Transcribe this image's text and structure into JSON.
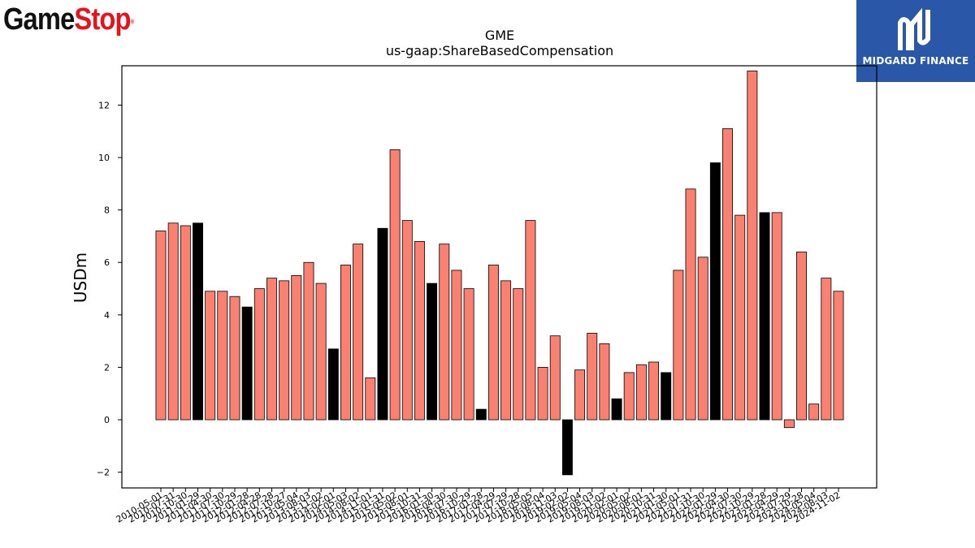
{
  "logos": {
    "gamestop_part1": "Game",
    "gamestop_part2": "Stop",
    "gamestop_reg": "®",
    "midgard": "MIDGARD FINANCE"
  },
  "chart_data": {
    "type": "bar",
    "title": "GME",
    "subtitle": "us-gaap:ShareBasedCompensation",
    "xlabel": "",
    "ylabel": "USDm",
    "ylim": [
      -2.6,
      13.5
    ],
    "yticks": [
      -2,
      0,
      2,
      4,
      6,
      8,
      10,
      12
    ],
    "ytick_labels": [
      "−2",
      "0",
      "2",
      "4",
      "6",
      "8",
      "10",
      "12"
    ],
    "grid": false,
    "colors": {
      "normal": "#fa8072",
      "highlight": "#000000",
      "edge": "#000000"
    },
    "categories": [
      "2010-05-01",
      "2010-07-31",
      "2010-10-30",
      "2011-01-29",
      "2011-04-30",
      "2011-07-30",
      "2011-10-29",
      "2012-01-28",
      "2012-04-28",
      "2012-07-28",
      "2012-10-27",
      "2013-05-04",
      "2013-08-03",
      "2013-11-02",
      "2014-02-01",
      "2014-05-03",
      "2014-08-02",
      "2014-11-01",
      "2015-01-31",
      "2015-05-02",
      "2015-08-01",
      "2015-10-31",
      "2016-01-30",
      "2016-04-30",
      "2016-07-30",
      "2016-10-29",
      "2017-01-28",
      "2017-04-29",
      "2017-07-29",
      "2017-10-28",
      "2018-05-05",
      "2018-08-04",
      "2018-11-03",
      "2019-02-02",
      "2019-05-04",
      "2019-08-03",
      "2019-11-02",
      "2020-02-01",
      "2020-05-02",
      "2020-08-01",
      "2020-10-31",
      "2021-01-30",
      "2021-05-01",
      "2021-07-31",
      "2021-10-30",
      "2022-01-29",
      "2022-04-30",
      "2022-07-30",
      "2022-10-29",
      "2023-01-28",
      "2023-04-29",
      "2023-07-29",
      "2023-10-28",
      "2024-05-04",
      "2024-08-03",
      "2024-11-02"
    ],
    "values": [
      7.2,
      7.5,
      7.4,
      7.5,
      4.9,
      4.9,
      4.7,
      4.3,
      5.0,
      5.4,
      5.3,
      5.5,
      6.0,
      5.2,
      2.7,
      5.9,
      6.7,
      1.6,
      7.3,
      10.3,
      7.6,
      6.8,
      5.2,
      6.7,
      5.7,
      5.0,
      0.4,
      5.9,
      5.3,
      5.0,
      7.6,
      2.0,
      3.2,
      -2.1,
      1.9,
      3.3,
      2.9,
      0.8,
      1.8,
      2.1,
      2.2,
      1.8,
      5.7,
      8.8,
      6.2,
      9.8,
      11.1,
      7.8,
      13.3,
      7.9,
      7.9,
      -0.3,
      6.4,
      0.6,
      5.4,
      4.9
    ],
    "highlight": [
      false,
      false,
      false,
      true,
      false,
      false,
      false,
      true,
      false,
      false,
      false,
      false,
      false,
      false,
      true,
      false,
      false,
      false,
      true,
      false,
      false,
      false,
      true,
      false,
      false,
      false,
      true,
      false,
      false,
      false,
      false,
      false,
      false,
      true,
      false,
      false,
      false,
      true,
      false,
      false,
      false,
      true,
      false,
      false,
      false,
      true,
      false,
      false,
      false,
      true,
      false,
      false,
      false,
      false,
      false,
      false
    ]
  }
}
